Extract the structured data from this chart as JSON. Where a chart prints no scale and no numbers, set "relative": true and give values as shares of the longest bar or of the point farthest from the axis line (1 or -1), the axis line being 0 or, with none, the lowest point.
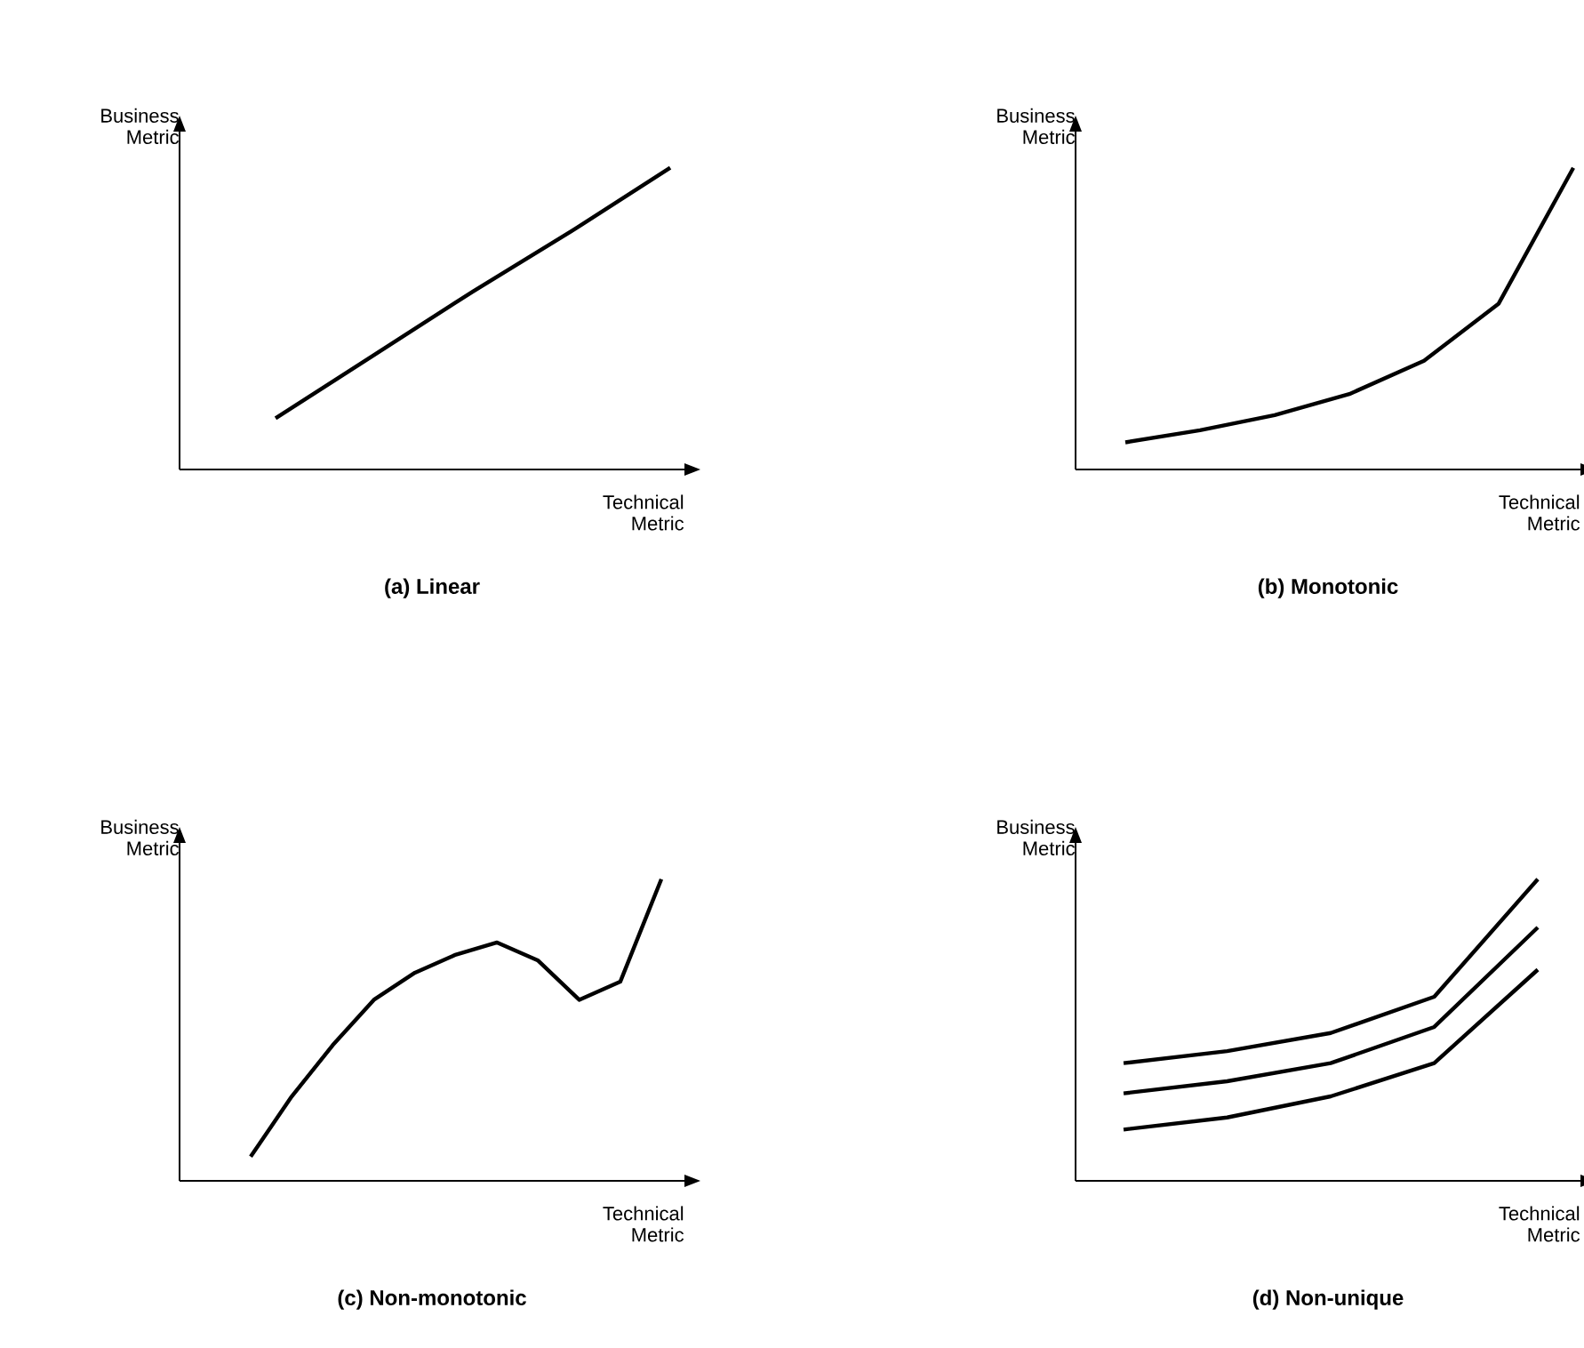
{
  "chart_data": [
    {
      "type": "line",
      "title": "(a) Linear",
      "xlabel": "Technical Metric",
      "ylabel": "Business Metric",
      "relative": true,
      "marker": "none",
      "line_style": "solid",
      "categories": [
        null,
        null,
        null,
        null,
        null
      ],
      "values": [
        0.17,
        0.38,
        0.59,
        0.79,
        1
      ],
      "color": "#000000"
    },
    {
      "type": "line",
      "title": "(b) Monotonic",
      "xlabel": "Technical Metric",
      "ylabel": "Business Metric",
      "relative": true,
      "marker": "none",
      "line_style": "solid",
      "categories": [
        null,
        null,
        null,
        null,
        null,
        null,
        null
      ],
      "values": [
        0.09,
        0.13,
        0.18,
        0.25,
        0.36,
        0.55,
        1
      ],
      "color": "#000000"
    },
    {
      "type": "line",
      "title": "(c) Non-monotonic",
      "xlabel": "Technical Metric",
      "ylabel": "Business Metric",
      "relative": true,
      "marker": "none",
      "line_style": "solid",
      "categories": [
        null,
        null,
        null,
        null,
        null,
        null,
        null,
        null,
        null,
        null,
        null
      ],
      "values": [
        0.08,
        0.28,
        0.45,
        0.6,
        0.69,
        0.75,
        0.79,
        0.73,
        0.6,
        0.66,
        1
      ],
      "color": "#000000"
    },
    {
      "type": "line",
      "title": "(d) Non-unique",
      "xlabel": "Technical Metric",
      "ylabel": "Business Metric",
      "relative": true,
      "marker": "none",
      "line_style": "solid",
      "categories": [
        null,
        null,
        null,
        null,
        null
      ],
      "series": [
        {
          "color": "#000000",
          "values": [
            0.39,
            0.43,
            0.49,
            0.61,
            1
          ]
        },
        {
          "color": "#000000",
          "values": [
            0.29,
            0.33,
            0.39,
            0.51,
            0.84
          ]
        },
        {
          "color": "#000000",
          "values": [
            0.17,
            0.21,
            0.28,
            0.39,
            0.7
          ]
        }
      ]
    }
  ]
}
